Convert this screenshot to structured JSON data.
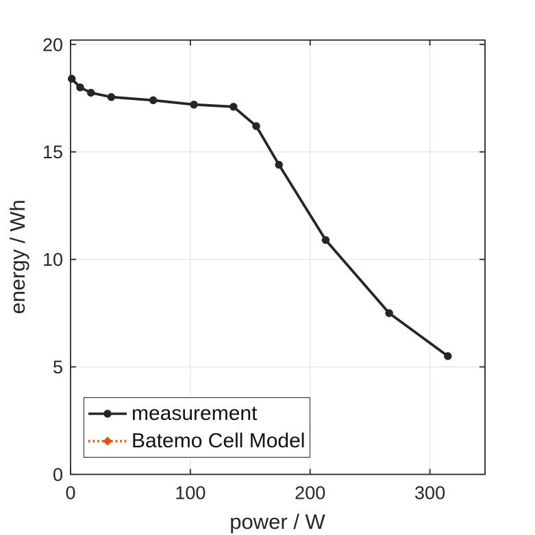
{
  "chart_data": {
    "type": "line",
    "title": "",
    "xlabel": "power / W",
    "ylabel": "energy / Wh",
    "xlim": [
      0,
      346
    ],
    "ylim": [
      0,
      20.2
    ],
    "xticks": [
      0,
      100,
      200,
      300
    ],
    "yticks": [
      0,
      5,
      10,
      15,
      20
    ],
    "grid": true,
    "legend_position": "southwest",
    "x_shared": [
      1,
      8,
      17,
      34,
      69,
      103,
      136,
      155,
      174,
      213,
      266,
      315
    ],
    "series": [
      {
        "name": "measurement",
        "color": "#262626",
        "line_style": "solid",
        "marker": "circle",
        "values": [
          18.4,
          18.0,
          17.75,
          17.55,
          17.4,
          17.2,
          17.1,
          16.2,
          14.4,
          10.9,
          7.5,
          5.5
        ]
      },
      {
        "name": "Batemo Cell Model",
        "color": "#E4510B",
        "line_style": "dotted",
        "marker": "diamond",
        "values": [
          18.4,
          18.0,
          17.75,
          17.55,
          17.4,
          17.2,
          17.1,
          16.2,
          14.4,
          10.9,
          7.5,
          5.5
        ]
      }
    ]
  },
  "colors": {
    "background": "#ffffff",
    "grid": "#e6e6e6",
    "axis_box": "#262626",
    "tick_text": "#262626",
    "legend_border": "#262626"
  }
}
